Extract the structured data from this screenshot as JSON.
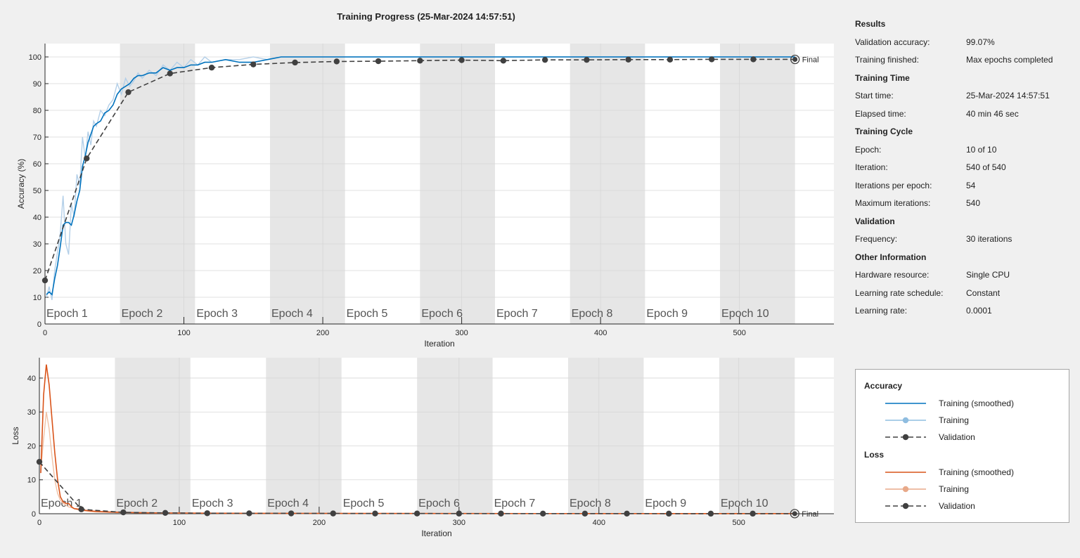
{
  "title": "Training Progress (25-Mar-2024 14:57:51)",
  "colors": {
    "train_acc_smoothed": "#0072bd",
    "train_acc": "#b3cfe8",
    "train_loss_smoothed": "#d95319",
    "train_loss": "#f0c2a6",
    "validation": "#404040",
    "epoch_shade": "#e6e6e6"
  },
  "results": {
    "sections": [
      {
        "title": "Results",
        "rows": [
          {
            "label": "Validation accuracy:",
            "value": "99.07%"
          },
          {
            "label": "Training finished:",
            "value": "Max epochs completed"
          }
        ]
      },
      {
        "title": "Training Time",
        "rows": [
          {
            "label": "Start time:",
            "value": "25-Mar-2024 14:57:51"
          },
          {
            "label": "Elapsed time:",
            "value": "40 min 46 sec"
          }
        ]
      },
      {
        "title": "Training Cycle",
        "rows": [
          {
            "label": "Epoch:",
            "value": "10 of 10"
          },
          {
            "label": "Iteration:",
            "value": "540 of 540"
          },
          {
            "label": "Iterations per epoch:",
            "value": "54"
          },
          {
            "label": "Maximum iterations:",
            "value": "540"
          }
        ]
      },
      {
        "title": "Validation",
        "rows": [
          {
            "label": "Frequency:",
            "value": "30 iterations"
          }
        ]
      },
      {
        "title": "Other Information",
        "rows": [
          {
            "label": "Hardware resource:",
            "value": "Single CPU"
          },
          {
            "label": "Learning rate schedule:",
            "value": "Constant"
          },
          {
            "label": "Learning rate:",
            "value": "0.0001"
          }
        ]
      }
    ]
  },
  "legend": {
    "sections": [
      {
        "title": "Accuracy",
        "entries": [
          {
            "label": "Training (smoothed)",
            "style": "solid",
            "color": "#0072bd",
            "marker": false
          },
          {
            "label": "Training",
            "style": "solid",
            "color": "#8fbde0",
            "marker": true
          },
          {
            "label": "Validation",
            "style": "dashed",
            "color": "#404040",
            "marker": true
          }
        ]
      },
      {
        "title": "Loss",
        "entries": [
          {
            "label": "Training (smoothed)",
            "style": "solid",
            "color": "#d95319",
            "marker": false
          },
          {
            "label": "Training",
            "style": "solid",
            "color": "#e8a989",
            "marker": true
          },
          {
            "label": "Validation",
            "style": "dashed",
            "color": "#404040",
            "marker": true
          }
        ]
      }
    ]
  },
  "chart_data": [
    {
      "type": "line",
      "id": "accuracy",
      "xlabel": "Iteration",
      "ylabel": "Accuracy (%)",
      "xlim": [
        0,
        568
      ],
      "ylim": [
        0,
        105
      ],
      "xticks": [
        0,
        100,
        200,
        300,
        400,
        500
      ],
      "yticks": [
        0,
        10,
        20,
        30,
        40,
        50,
        60,
        70,
        80,
        90,
        100
      ],
      "grid": true,
      "epochs": [
        "Epoch 1",
        "Epoch 2",
        "Epoch 3",
        "Epoch 4",
        "Epoch 5",
        "Epoch 6",
        "Epoch 7",
        "Epoch 8",
        "Epoch 9",
        "Epoch 10"
      ],
      "iterations_per_epoch": 54,
      "final_label": "Final",
      "series": [
        {
          "name": "Training",
          "role": "train_raw",
          "x": [
            1,
            3,
            5,
            7,
            9,
            11,
            13,
            15,
            17,
            19,
            21,
            23,
            25,
            27,
            29,
            31,
            33,
            35,
            37,
            40,
            43,
            46,
            49,
            52,
            55,
            58,
            61,
            64,
            67,
            70,
            75,
            80,
            85,
            90,
            95,
            100,
            105,
            110,
            115,
            120,
            130,
            140,
            150,
            160,
            170,
            180,
            200,
            250,
            300,
            350,
            400,
            450,
            500,
            540
          ],
          "y": [
            10,
            14,
            9,
            20,
            27,
            34,
            48,
            30,
            26,
            45,
            40,
            56,
            52,
            70,
            62,
            72,
            67,
            76,
            74,
            80,
            78,
            82,
            84,
            90,
            86,
            92,
            89,
            91,
            94,
            92,
            95,
            93,
            97,
            95,
            98,
            96,
            99,
            97,
            100,
            98,
            99,
            99,
            100,
            99,
            100,
            100,
            100,
            100,
            100,
            100,
            100,
            100,
            100,
            100
          ]
        },
        {
          "name": "Training (smoothed)",
          "role": "train_smooth",
          "x": [
            1,
            3,
            5,
            7,
            9,
            11,
            13,
            15,
            17,
            19,
            21,
            23,
            25,
            27,
            29,
            31,
            33,
            35,
            37,
            40,
            43,
            46,
            49,
            52,
            55,
            58,
            61,
            64,
            67,
            70,
            75,
            80,
            85,
            90,
            95,
            100,
            105,
            110,
            115,
            120,
            130,
            140,
            150,
            160,
            170,
            180,
            200,
            250,
            300,
            350,
            400,
            450,
            500,
            540
          ],
          "y": [
            11,
            12,
            11,
            17,
            22,
            29,
            37,
            38,
            38,
            37,
            41,
            46,
            50,
            59,
            63,
            68,
            71,
            74,
            75,
            76,
            79,
            80,
            82,
            86,
            88,
            89,
            90,
            92,
            93,
            93,
            94,
            94,
            96,
            95,
            96,
            96,
            97,
            97,
            98,
            98,
            99,
            98,
            98,
            99,
            100,
            100,
            100,
            100,
            100,
            100,
            100,
            100,
            100,
            100
          ]
        },
        {
          "name": "Validation",
          "role": "validation",
          "x": [
            0,
            30,
            60,
            90,
            120,
            150,
            180,
            210,
            240,
            270,
            300,
            330,
            360,
            390,
            420,
            450,
            480,
            510,
            540
          ],
          "y": [
            16.3,
            62,
            86.8,
            93.8,
            96,
            97.2,
            97.9,
            98.3,
            98.4,
            98.6,
            98.8,
            98.6,
            98.9,
            98.9,
            99.0,
            99.0,
            99.1,
            99.1,
            99.07
          ]
        }
      ]
    },
    {
      "type": "line",
      "id": "loss",
      "xlabel": "Iteration",
      "ylabel": "Loss",
      "xlim": [
        0,
        568
      ],
      "ylim": [
        0,
        46
      ],
      "xticks": [
        0,
        100,
        200,
        300,
        400,
        500
      ],
      "yticks": [
        0,
        10,
        20,
        30,
        40
      ],
      "grid": true,
      "epochs": [
        "Epoch 1",
        "Epoch 2",
        "Epoch 3",
        "Epoch 4",
        "Epoch 5",
        "Epoch 6",
        "Epoch 7",
        "Epoch 8",
        "Epoch 9",
        "Epoch 10"
      ],
      "iterations_per_epoch": 54,
      "final_label": "Final",
      "series": [
        {
          "name": "Training",
          "role": "train_raw",
          "x": [
            1,
            3,
            5,
            7,
            9,
            11,
            13,
            15,
            17,
            19,
            21,
            23,
            25,
            27,
            29,
            31,
            35,
            40,
            50,
            60,
            80,
            100,
            150,
            200,
            300,
            400,
            500,
            540
          ],
          "y": [
            13,
            22,
            30,
            25,
            17,
            10,
            6,
            4,
            3,
            2.5,
            2,
            1.8,
            1.5,
            1.2,
            1,
            0.9,
            0.7,
            0.5,
            0.4,
            0.3,
            0.2,
            0.15,
            0.1,
            0.08,
            0.05,
            0.04,
            0.03,
            0.03
          ]
        },
        {
          "name": "Training (smoothed)",
          "role": "train_smooth",
          "x": [
            1,
            3,
            5,
            7,
            9,
            11,
            13,
            15,
            17,
            19,
            21,
            23,
            25,
            27,
            29,
            31,
            35,
            40,
            50,
            60,
            80,
            100,
            150,
            200,
            300,
            400,
            500,
            540
          ],
          "y": [
            12,
            35,
            44,
            38,
            28,
            18,
            10,
            5,
            3.5,
            3,
            3,
            2,
            1.5,
            1.4,
            1.2,
            1.1,
            0.9,
            0.7,
            0.5,
            0.4,
            0.25,
            0.2,
            0.12,
            0.1,
            0.06,
            0.05,
            0.04,
            0.04
          ]
        },
        {
          "name": "Validation",
          "role": "validation",
          "x": [
            0,
            30,
            60,
            90,
            120,
            150,
            180,
            210,
            240,
            270,
            300,
            330,
            360,
            390,
            420,
            450,
            480,
            510,
            540
          ],
          "y": [
            15.3,
            1.3,
            0.4,
            0.25,
            0.15,
            0.12,
            0.1,
            0.08,
            0.07,
            0.06,
            0.05,
            0.05,
            0.04,
            0.04,
            0.04,
            0.03,
            0.03,
            0.03,
            0.03
          ]
        }
      ]
    }
  ]
}
